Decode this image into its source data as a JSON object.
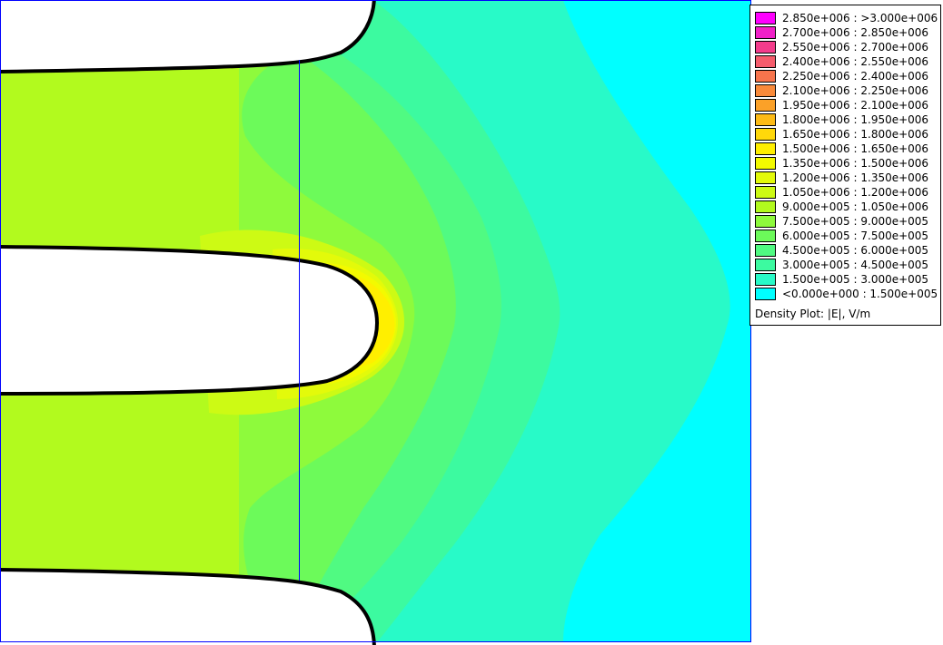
{
  "plot": {
    "legend_title": "Density Plot: |E|, V/m",
    "legend": [
      {
        "label": "2.850e+006 : >3.000e+006",
        "color": "#ff00ff"
      },
      {
        "label": "2.700e+006 : 2.850e+006",
        "color": "#f020c8"
      },
      {
        "label": "2.550e+006 : 2.700e+006",
        "color": "#f43c8c"
      },
      {
        "label": "2.400e+006 : 2.550e+006",
        "color": "#f55c6c"
      },
      {
        "label": "2.250e+006 : 2.400e+006",
        "color": "#f7744c"
      },
      {
        "label": "2.100e+006 : 2.250e+006",
        "color": "#f98a3a"
      },
      {
        "label": "1.950e+006 : 2.100e+006",
        "color": "#fba128"
      },
      {
        "label": "1.800e+006 : 1.950e+006",
        "color": "#fdbb16"
      },
      {
        "label": "1.650e+006 : 1.800e+006",
        "color": "#ffd80a"
      },
      {
        "label": "1.500e+006 : 1.650e+006",
        "color": "#ffef00"
      },
      {
        "label": "1.350e+006 : 1.500e+006",
        "color": "#f3fa00"
      },
      {
        "label": "1.200e+006 : 1.350e+006",
        "color": "#e3fa0a"
      },
      {
        "label": "1.050e+006 : 1.200e+006",
        "color": "#cdfa14"
      },
      {
        "label": "9.000e+005 : 1.050e+006",
        "color": "#b2fa1e"
      },
      {
        "label": "7.500e+005 : 9.000e+005",
        "color": "#8efa3c"
      },
      {
        "label": "6.000e+005 : 7.500e+005",
        "color": "#6cfa5a"
      },
      {
        "label": "4.500e+005 : 6.000e+005",
        "color": "#50fa82"
      },
      {
        "label": "3.000e+005 : 4.500e+005",
        "color": "#3cfaa0"
      },
      {
        "label": "1.500e+005 : 3.000e+005",
        "color": "#28fac8"
      },
      {
        "label": "<0.000e+000 : 1.500e+005",
        "color": "#00ffff"
      }
    ]
  }
}
